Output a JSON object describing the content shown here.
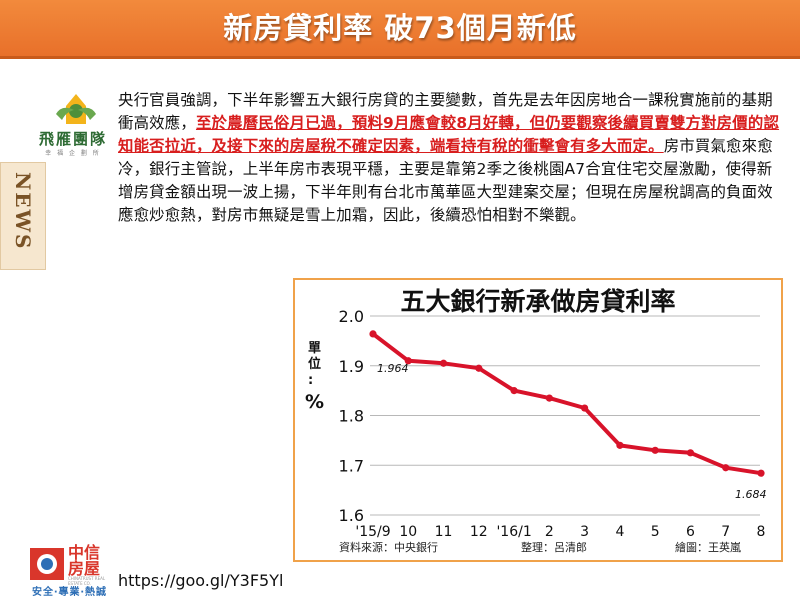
{
  "header": {
    "title": "新房貸利率 破73個月新低"
  },
  "brand_top": {
    "name": "飛雁團隊",
    "tagline": "幸 福 企 劃 所"
  },
  "side_tab": {
    "label": "NEWS"
  },
  "article": {
    "part1": "央行官員強調，下半年影響五大銀行房貸的主要變數，首先是去年因房地合一課稅實施前的基期衝高效應，",
    "highlight": "至於農曆民俗月已過，預料9月應會較8月好轉，但仍要觀察後續買賣雙方對房價的認知能否拉近，及接下來的房屋稅不確定因素，端看持有稅的衝擊會有多大而定。",
    "part2": "房市買氣愈來愈冷，銀行主管說，上半年房市表現平穩，主要是靠第2季之後桃園A7合宜住宅交屋激勵，使得新增房貸金額出現一波上揚，下半年則有台北市萬華區大型建案交屋；但現在房屋稅調高的負面效應愈炒愈熱，對房市無疑是雪上加霜，因此，後續恐怕相對不樂觀。"
  },
  "chart_data": {
    "type": "line",
    "title": "五大銀行新承做房貸利率",
    "ylabel": "單位：%",
    "categories": [
      "'15/9",
      "10",
      "11",
      "12",
      "'16/1",
      "2",
      "3",
      "4",
      "5",
      "6",
      "7",
      "8"
    ],
    "series": [
      {
        "values": [
          1.964,
          1.91,
          1.905,
          1.895,
          1.85,
          1.835,
          1.815,
          1.74,
          1.73,
          1.725,
          1.695,
          1.684
        ]
      }
    ],
    "data_labels": {
      "first": "1.964",
      "last": "1.684"
    },
    "ylim": [
      1.6,
      2.0
    ],
    "yticks": [
      "1.6",
      "1.7",
      "1.8",
      "1.9",
      "2.0"
    ],
    "grid": true,
    "line_color": "#d8132a",
    "source": "資料來源：中央銀行",
    "editor": "整理：呂清郎",
    "artist": "繪圖：王英嵐"
  },
  "brand_bottom": {
    "name": "中信房屋",
    "english": "CHINATRUST REAL ESTATE CO.",
    "slogan": "安全‧專業‧熱誠"
  },
  "footer": {
    "link": "https://goo.gl/Y3F5Yl"
  }
}
